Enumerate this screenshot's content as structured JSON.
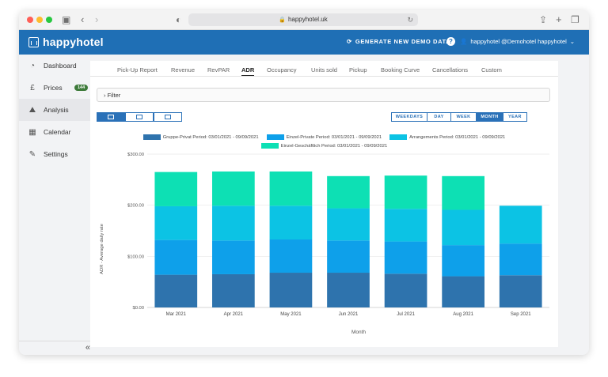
{
  "browser": {
    "url": "happyhotel.uk"
  },
  "header": {
    "brand": "happyhotel",
    "generate_label": "GENERATE NEW DEMO DATA",
    "help_label": "?",
    "user_label": "happyhotel @Demohotel happyhotel"
  },
  "sidebar": {
    "items": [
      {
        "label": "Dashboard",
        "icon": "gauge-icon"
      },
      {
        "label": "Prices",
        "icon": "pound-icon",
        "badge": "144"
      },
      {
        "label": "Analysis",
        "icon": "chart-icon"
      },
      {
        "label": "Calendar",
        "icon": "calendar-icon"
      },
      {
        "label": "Settings",
        "icon": "wrench-icon"
      }
    ],
    "collapse_label": "«"
  },
  "tabs": [
    "Pick-Up Report",
    "Revenue",
    "RevPAR",
    "ADR",
    "Occupancy",
    "Units sold",
    "Pickup",
    "Booking Curve",
    "Cancellations",
    "Custom"
  ],
  "active_tab": "ADR",
  "filter": {
    "label": "Filter"
  },
  "period_buttons": [
    "WEEKDAYS",
    "DAY",
    "WEEK",
    "MONTH",
    "YEAR"
  ],
  "active_period": "MONTH",
  "colors": {
    "brand": "#1f6fb5",
    "accent": "#2a71b8"
  },
  "chart_data": {
    "type": "bar",
    "stacked": true,
    "categories": [
      "Mar 2021",
      "Apr 2021",
      "May 2021",
      "Jun 2021",
      "Jul 2021",
      "Aug 2021",
      "Sep 2021"
    ],
    "series": [
      {
        "name": "Gruppe-Privat Period: 03/01/2021 - 09/09/2021",
        "color": "#2e73ad",
        "values": [
          64,
          65,
          68,
          68,
          66,
          61,
          63
        ]
      },
      {
        "name": "Einzel-Private Period: 03/01/2021 - 09/09/2021",
        "color": "#0ea0ea",
        "values": [
          68,
          66,
          65,
          63,
          63,
          61,
          62
        ]
      },
      {
        "name": "Arrangements Period: 03/01/2021 - 09/09/2021",
        "color": "#0cc3e4",
        "values": [
          66,
          68,
          66,
          63,
          64,
          69,
          74
        ]
      },
      {
        "name": "Einzel-Geschäftlich Period: 03/01/2021 - 09/09/2021",
        "color": "#0de0b4",
        "values": [
          67,
          67,
          67,
          63,
          65,
          66,
          0
        ]
      }
    ],
    "xlabel": "Month",
    "ylabel": "ADR - Average daily rate",
    "yticks": [
      "$0.00",
      "$100.00",
      "$200.00",
      "$300.00"
    ],
    "ylim": [
      0,
      300
    ],
    "grid": true,
    "legend_position": "top-center"
  }
}
